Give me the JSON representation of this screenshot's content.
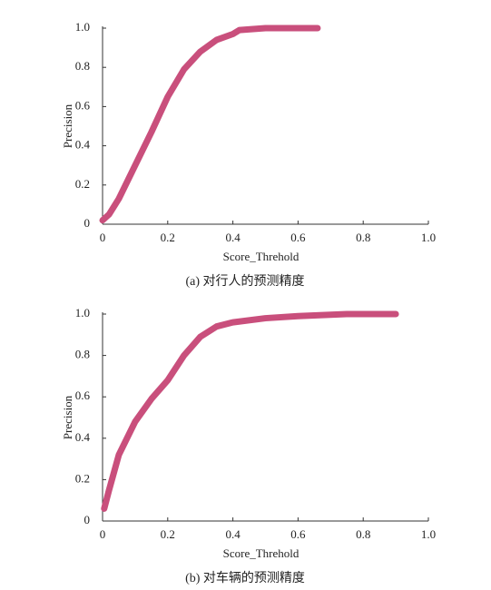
{
  "chart_data": [
    {
      "type": "line",
      "caption": "(a) 对行人的预测精度",
      "xlabel": "Score_Threhold",
      "ylabel": "Precision",
      "x": [
        0,
        0.02,
        0.05,
        0.1,
        0.15,
        0.2,
        0.25,
        0.3,
        0.35,
        0.4,
        0.42,
        0.5,
        0.66
      ],
      "values": [
        0.02,
        0.05,
        0.13,
        0.3,
        0.47,
        0.65,
        0.79,
        0.88,
        0.94,
        0.97,
        0.99,
        1.0,
        1.0
      ],
      "color": "#c94f7c",
      "xlim": [
        0,
        1
      ],
      "ylim": [
        0,
        1
      ],
      "xticks": [
        0,
        0.2,
        0.4,
        0.6,
        0.8,
        {
          "value": 1,
          "label": "1.0"
        }
      ],
      "yticks": [
        0,
        0.2,
        0.4,
        0.6,
        0.8,
        {
          "value": 1,
          "label": "1.0"
        }
      ]
    },
    {
      "type": "line",
      "caption": "(b) 对车辆的预测精度",
      "xlabel": "Score_Threhold",
      "ylabel": "Precision",
      "x": [
        0.005,
        0.02,
        0.05,
        0.1,
        0.15,
        0.2,
        0.25,
        0.3,
        0.35,
        0.4,
        0.5,
        0.6,
        0.75,
        0.9
      ],
      "values": [
        0.06,
        0.15,
        0.32,
        0.48,
        0.59,
        0.68,
        0.8,
        0.89,
        0.94,
        0.96,
        0.98,
        0.99,
        1.0,
        1.0
      ],
      "color": "#c94f7c",
      "xlim": [
        0,
        1
      ],
      "ylim": [
        0,
        1
      ],
      "xticks": [
        0,
        0.2,
        0.4,
        0.6,
        0.8,
        {
          "value": 1,
          "label": "1.0"
        }
      ],
      "yticks": [
        0,
        0.2,
        0.4,
        0.6,
        0.8,
        {
          "value": 1,
          "label": "1.0"
        }
      ]
    }
  ]
}
